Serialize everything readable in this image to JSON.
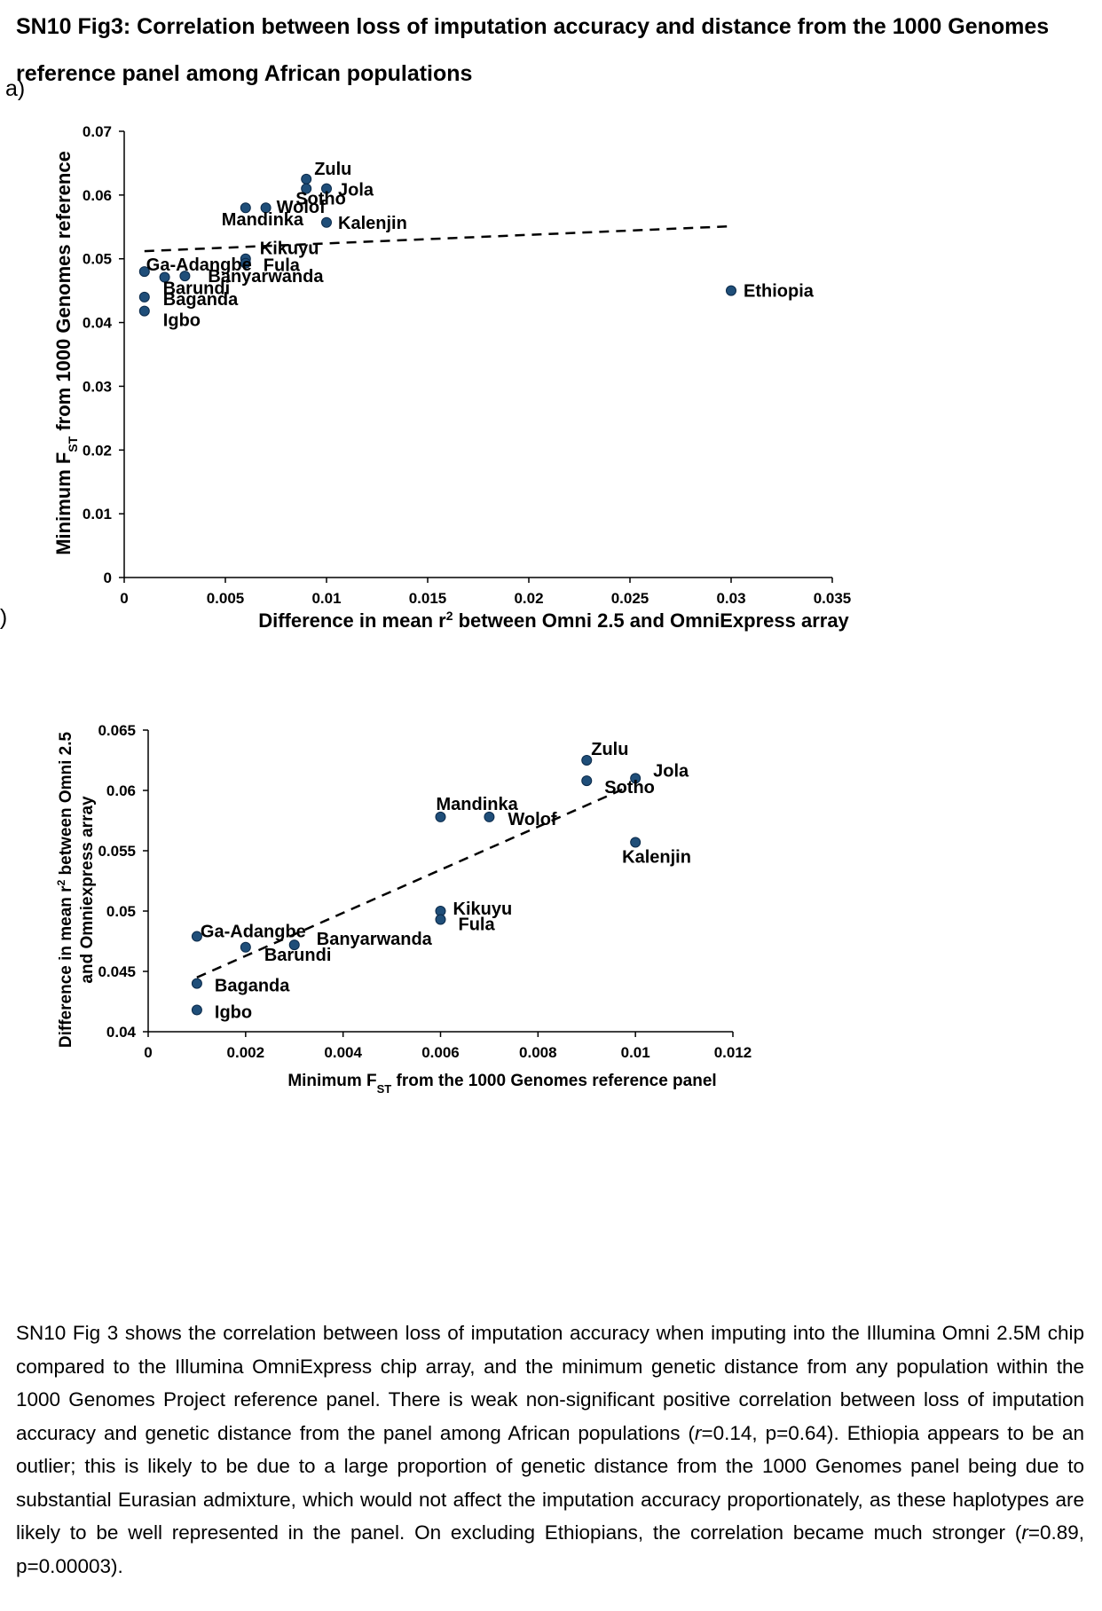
{
  "heading": "SN10 Fig3: Correlation between loss of imputation accuracy and distance from the 1000 Genomes reference panel among African populations",
  "panel_a_label": "a)",
  "panel_b_label": "b)",
  "caption": {
    "p1": "SN10 Fig 3 shows the correlation between loss of imputation accuracy when imputing into the Illumina Omni 2.5M chip compared to the Illumina OmniExpress chip array, and the minimum genetic distance from any population within the 1000 Genomes Project reference panel. There is  weak non-significant positive correlation between loss of imputation accuracy and genetic distance from the panel among African populations (",
    "r1": "r",
    "p2": "=0.14, p=0.64). Ethiopia appears to be an outlier; this is likely to be due to a large proportion of genetic distance from the 1000 Genomes panel being due to substantial Eurasian admixture, which would not affect the imputation accuracy proportionately, as these haplotypes are likely to be well represented in the panel. On excluding Ethiopians, the correlation became much stronger (",
    "r2": "r",
    "p3": "=0.89, p=0.00003)."
  },
  "chart_data": [
    {
      "type": "scatter",
      "title": "",
      "xlabel": "Difference in mean r² between Omni 2.5 and OmniExpress array",
      "ylabel": "Minimum FST from 1000 Genomes reference",
      "xlim": [
        0,
        0.035
      ],
      "ylim": [
        0,
        0.07
      ],
      "xticks": [
        "0",
        "0.005",
        "0.01",
        "0.015",
        "0.02",
        "0.025",
        "0.03",
        "0.035"
      ],
      "yticks": [
        "0",
        "0.01",
        "0.02",
        "0.03",
        "0.04",
        "0.05",
        "0.06",
        "0.07"
      ],
      "xtick_values": [
        0,
        0.005,
        0.01,
        0.015,
        0.02,
        0.025,
        0.03,
        0.035
      ],
      "ytick_values": [
        0,
        0.01,
        0.02,
        0.03,
        0.04,
        0.05,
        0.06,
        0.07
      ],
      "point_color": "#1f4e79",
      "trendline": {
        "x": [
          0.001,
          0.03
        ],
        "y": [
          0.0512,
          0.0551
        ]
      },
      "points": [
        {
          "label": "Zulu",
          "x": 0.009,
          "y": 0.0625
        },
        {
          "label": "Jola",
          "x": 0.01,
          "y": 0.061
        },
        {
          "label": "Sotho",
          "x": 0.009,
          "y": 0.061
        },
        {
          "label": "Wolof",
          "x": 0.007,
          "y": 0.058
        },
        {
          "label": "Mandinka",
          "x": 0.006,
          "y": 0.058
        },
        {
          "label": "Kalenjin",
          "x": 0.01,
          "y": 0.0557
        },
        {
          "label": "Kikuyu",
          "x": 0.006,
          "y": 0.05
        },
        {
          "label": "Fula",
          "x": 0.006,
          "y": 0.0493
        },
        {
          "label": "Ga-Adangbe",
          "x": 0.001,
          "y": 0.048
        },
        {
          "label": "Banyarwanda",
          "x": 0.003,
          "y": 0.0473
        },
        {
          "label": "Barundi",
          "x": 0.002,
          "y": 0.0471
        },
        {
          "label": "Baganda",
          "x": 0.001,
          "y": 0.044
        },
        {
          "label": "Igbo",
          "x": 0.001,
          "y": 0.0418
        },
        {
          "label": "Ethiopia",
          "x": 0.03,
          "y": 0.045
        }
      ]
    },
    {
      "type": "scatter",
      "title": "",
      "xlabel": "Minimum FST from the 1000 Genomes reference panel",
      "ylabel": "Difference in mean r² between Omni 2.5 and Omniexpress array",
      "xlim": [
        0,
        0.012
      ],
      "ylim": [
        0.04,
        0.065
      ],
      "xticks": [
        "0",
        "0.002",
        "0.004",
        "0.006",
        "0.008",
        "0.01",
        "0.012"
      ],
      "yticks": [
        "0.04",
        "0.045",
        "0.05",
        "0.055",
        "0.06",
        "0.065"
      ],
      "xtick_values": [
        0,
        0.002,
        0.004,
        0.006,
        0.008,
        0.01,
        0.012
      ],
      "ytick_values": [
        0.04,
        0.045,
        0.05,
        0.055,
        0.06,
        0.065
      ],
      "point_color": "#1f4e79",
      "trendline": {
        "x": [
          0.001,
          0.0098
        ],
        "y": [
          0.0445,
          0.0602
        ]
      },
      "points": [
        {
          "label": "Zulu",
          "x": 0.009,
          "y": 0.0625
        },
        {
          "label": "Jola",
          "x": 0.01,
          "y": 0.061
        },
        {
          "label": "Sotho",
          "x": 0.009,
          "y": 0.0608
        },
        {
          "label": "Mandinka",
          "x": 0.006,
          "y": 0.0578
        },
        {
          "label": "Wolof",
          "x": 0.007,
          "y": 0.0578
        },
        {
          "label": "Kalenjin",
          "x": 0.01,
          "y": 0.0557
        },
        {
          "label": "Kikuyu",
          "x": 0.006,
          "y": 0.05
        },
        {
          "label": "Fula",
          "x": 0.006,
          "y": 0.0493
        },
        {
          "label": "Ga-Adangbe",
          "x": 0.001,
          "y": 0.0479
        },
        {
          "label": "Barundi",
          "x": 0.002,
          "y": 0.047
        },
        {
          "label": "Banyarwanda",
          "x": 0.003,
          "y": 0.0472
        },
        {
          "label": "Baganda",
          "x": 0.001,
          "y": 0.044
        },
        {
          "label": "Igbo",
          "x": 0.001,
          "y": 0.0418
        }
      ]
    }
  ]
}
